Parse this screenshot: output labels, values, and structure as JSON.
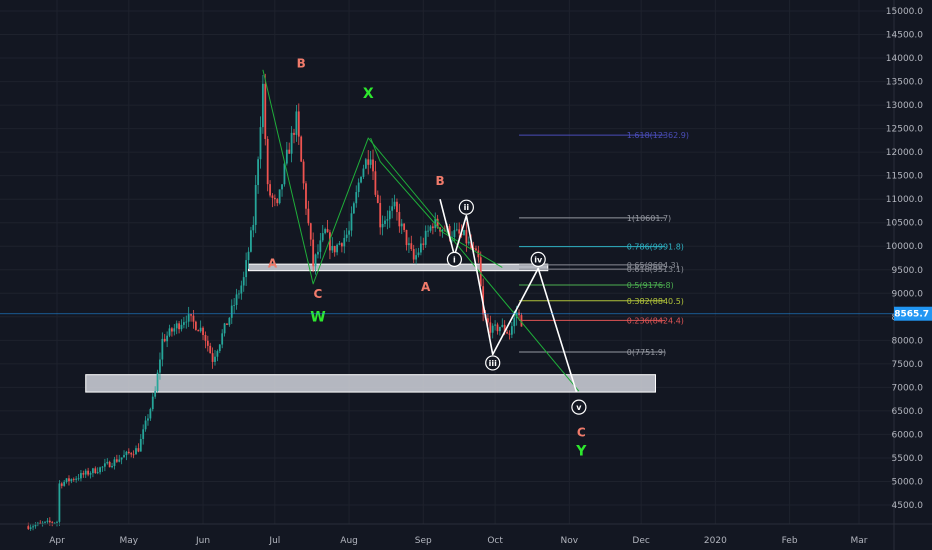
{
  "chart_data": {
    "type": "candlestick",
    "x_range": [
      "2019-03-20",
      "2020-03-31"
    ],
    "y_range": [
      4200,
      15200
    ],
    "y_ticks": [
      "15000.0",
      "14500.0",
      "14000.0",
      "13500.0",
      "13000.0",
      "12500.0",
      "12000.0",
      "11500.0",
      "11000.0",
      "10500.0",
      "10000.0",
      "9500.0",
      "9000.0",
      "8500.0",
      "8000.0",
      "7500.0",
      "7000.0",
      "6500.0",
      "6000.0",
      "5500.0",
      "5000.0",
      "4500.0"
    ],
    "y_tick_values": [
      15000,
      14500,
      14000,
      13500,
      13000,
      12500,
      12000,
      11500,
      11000,
      10500,
      10000,
      9500,
      9000,
      8500,
      8000,
      7500,
      7000,
      6500,
      6000,
      5500,
      5000,
      4500
    ],
    "x_ticks": [
      "Apr",
      "May",
      "Jun",
      "Jul",
      "Aug",
      "Sep",
      "Oct",
      "Nov",
      "Dec",
      "2020",
      "Feb",
      "Mar"
    ],
    "x_tick_dates": [
      "2019-04-01",
      "2019-05-01",
      "2019-06-01",
      "2019-07-01",
      "2019-08-01",
      "2019-09-01",
      "2019-10-01",
      "2019-11-01",
      "2019-12-01",
      "2020-01-01",
      "2020-02-01",
      "2020-03-01"
    ],
    "last_price": {
      "label": "8565.7",
      "value": 8565.7,
      "color": "#2196f3"
    },
    "colors": {
      "up": "#26a69a",
      "down": "#ef5350",
      "wave_xyz": "#2ee82e",
      "wave_abc": "#f07b6b",
      "projection": "#ffffff",
      "zone": "#d1d4dc"
    },
    "path_anchors": [
      [
        "2019-03-20",
        4050
      ],
      [
        "2019-04-01",
        4150
      ],
      [
        "2019-04-02",
        4950
      ],
      [
        "2019-04-20",
        5300
      ],
      [
        "2019-05-05",
        5700
      ],
      [
        "2019-05-12",
        6900
      ],
      [
        "2019-05-15",
        8000
      ],
      [
        "2019-05-25",
        8500
      ],
      [
        "2019-06-01",
        8200
      ],
      [
        "2019-06-05",
        7600
      ],
      [
        "2019-06-12",
        8500
      ],
      [
        "2019-06-18",
        9300
      ],
      [
        "2019-06-22",
        10500
      ],
      [
        "2019-06-26",
        13400
      ],
      [
        "2019-06-28",
        11200
      ],
      [
        "2019-07-02",
        10800
      ],
      [
        "2019-07-06",
        11900
      ],
      [
        "2019-07-10",
        12700
      ],
      [
        "2019-07-13",
        11300
      ],
      [
        "2019-07-17",
        9600
      ],
      [
        "2019-07-22",
        10300
      ],
      [
        "2019-07-25",
        9900
      ],
      [
        "2019-08-01",
        10300
      ],
      [
        "2019-08-06",
        11600
      ],
      [
        "2019-08-10",
        12000
      ],
      [
        "2019-08-14",
        10500
      ],
      [
        "2019-08-20",
        10800
      ],
      [
        "2019-08-28",
        9700
      ],
      [
        "2019-09-05",
        10500
      ],
      [
        "2019-09-12",
        10300
      ],
      [
        "2019-09-18",
        10200
      ],
      [
        "2019-09-24",
        9700
      ],
      [
        "2019-09-26",
        8500
      ],
      [
        "2019-09-30",
        8200
      ],
      [
        "2019-10-03",
        8300
      ],
      [
        "2019-10-07",
        8150
      ],
      [
        "2019-10-10",
        8600
      ],
      [
        "2019-10-12",
        8400
      ]
    ],
    "fibonacci": [
      {
        "label": "1.618(12362.9)",
        "value": 12362.9,
        "color": "#4a4db8"
      },
      {
        "label": "1(10601.7)",
        "value": 10601.7,
        "color": "#9598a1"
      },
      {
        "label": "0.786(9991.8)",
        "value": 9991.8,
        "color": "#2fb3c4"
      },
      {
        "label": "0.65(9604.3)",
        "value": 9604.3,
        "color": "#8a8d96"
      },
      {
        "label": "0.618(9513.1)",
        "value": 9513.1,
        "color": "#8a8d96"
      },
      {
        "label": "0.5(9176.8)",
        "value": 9176.8,
        "color": "#4caf50"
      },
      {
        "label": "0.382(8840.5)",
        "value": 8840.5,
        "color": "#b0c23a"
      },
      {
        "label": "0.236(8424.4)",
        "value": 8424.4,
        "color": "#e05555"
      },
      {
        "label": "0(7751.9)",
        "value": 7751.9,
        "color": "#9598a1"
      }
    ],
    "fib_x_range": [
      "2019-10-11",
      "2019-12-11"
    ],
    "zones": [
      {
        "x0": "2019-06-20",
        "x1": "2019-10-23",
        "y0": 9480,
        "y1": 9620
      },
      {
        "x0": "2019-04-13",
        "x1": "2019-12-07",
        "y0": 6900,
        "y1": 7270
      }
    ],
    "wxy_line": [
      [
        "2019-06-26",
        13750
      ],
      [
        "2019-07-17",
        9200
      ],
      [
        "2019-08-09",
        12300
      ],
      [
        "2019-11-05",
        6920
      ]
    ],
    "abc_line": [
      [
        "2019-08-10",
        12300
      ],
      [
        "2019-08-14",
        11800
      ],
      [
        "2019-09-09",
        10300
      ],
      [
        "2019-10-04",
        9550
      ]
    ],
    "projection_line": [
      [
        "2019-09-08",
        11000
      ],
      [
        "2019-09-14",
        9800
      ],
      [
        "2019-09-19",
        10650
      ],
      [
        "2019-09-30",
        7700
      ],
      [
        "2019-10-19",
        9530
      ],
      [
        "2019-11-04",
        6900
      ]
    ],
    "labels": [
      {
        "text": "A",
        "x": "2019-06-30",
        "y": 9550,
        "kind": "abc"
      },
      {
        "text": "B",
        "x": "2019-07-12",
        "y": 13800,
        "kind": "abc"
      },
      {
        "text": "C",
        "x": "2019-07-19",
        "y": 8900,
        "kind": "abc"
      },
      {
        "text": "W",
        "x": "2019-07-19",
        "y": 8400,
        "kind": "xyz"
      },
      {
        "text": "X",
        "x": "2019-08-09",
        "y": 13150,
        "kind": "xyz"
      },
      {
        "text": "B",
        "x": "2019-09-08",
        "y": 11300,
        "kind": "abc"
      },
      {
        "text": "A",
        "x": "2019-09-02",
        "y": 9050,
        "kind": "abc"
      },
      {
        "text": "C",
        "x": "2019-11-06",
        "y": 5960,
        "kind": "abc"
      },
      {
        "text": "Y",
        "x": "2019-11-06",
        "y": 5550,
        "kind": "xyz"
      }
    ],
    "circles": [
      {
        "text": "i",
        "x": "2019-09-14",
        "y": 9720
      },
      {
        "text": "ii",
        "x": "2019-09-19",
        "y": 10830
      },
      {
        "text": "iii",
        "x": "2019-09-30",
        "y": 7520
      },
      {
        "text": "iv",
        "x": "2019-10-19",
        "y": 9720
      },
      {
        "text": "v",
        "x": "2019-11-05",
        "y": 6580
      }
    ]
  }
}
